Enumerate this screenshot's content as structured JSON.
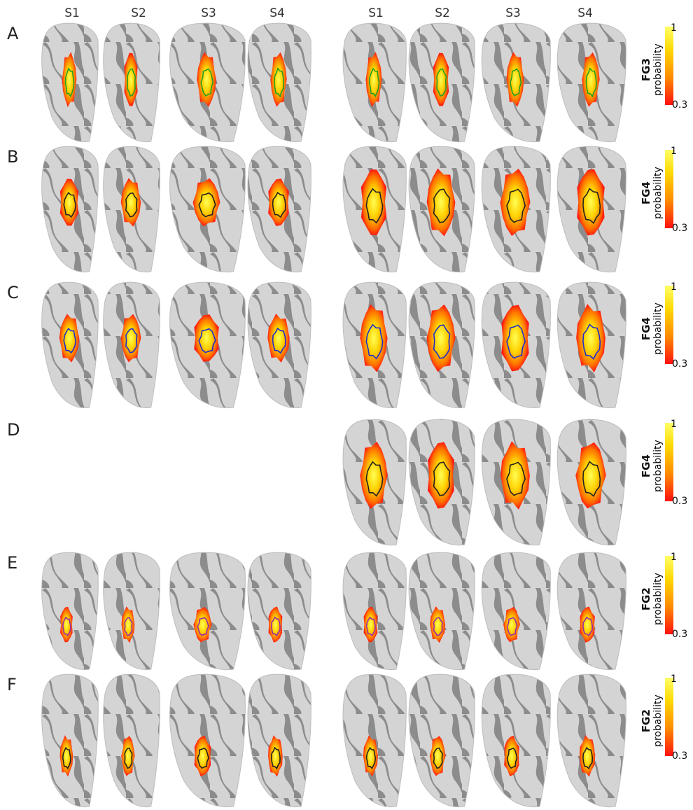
{
  "columns": {
    "left": [
      "S1",
      "S2",
      "S3",
      "S4"
    ],
    "right": [
      "S1",
      "S2",
      "S3",
      "S4"
    ]
  },
  "rows": [
    {
      "label": "A",
      "area": "FG3",
      "outline": "#23a023",
      "left_visible": true,
      "blob": "elongated"
    },
    {
      "label": "B",
      "area": "FG4",
      "outline": "#222222",
      "left_visible": true,
      "blob": "large"
    },
    {
      "label": "C",
      "area": "FG4",
      "outline": "#1f2ccc",
      "left_visible": true,
      "blob": "large"
    },
    {
      "label": "D",
      "area": "FG4",
      "outline": "#222222",
      "left_visible": false,
      "blob": "large"
    },
    {
      "label": "E",
      "area": "FG2",
      "outline": "#9a2aa8",
      "left_visible": true,
      "blob": "small"
    },
    {
      "label": "F",
      "area": "FG2",
      "outline": "#222222",
      "left_visible": true,
      "blob": "small"
    }
  ],
  "colorbar": {
    "title": "probability",
    "max_label": "1",
    "min_label": "0.3",
    "colors": [
      "#ff1010",
      "#ff8a00",
      "#ffd800",
      "#ffff66"
    ]
  },
  "brain_colors": {
    "sulcus": "#8c8c8c",
    "gyrus": "#d4d4d4",
    "edge": "#bdbdbd"
  }
}
